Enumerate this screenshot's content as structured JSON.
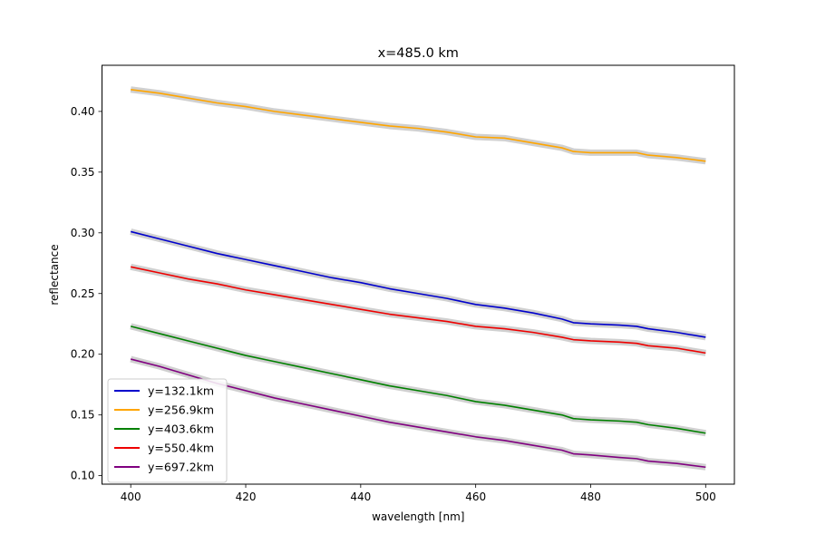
{
  "chart_data": {
    "type": "line",
    "title": "x=485.0 km",
    "xlabel": "wavelength [nm]",
    "ylabel": "reflectance",
    "xlim": [
      395,
      505
    ],
    "ylim": [
      0.093,
      0.438
    ],
    "xticks": [
      400,
      420,
      440,
      460,
      480,
      500
    ],
    "yticks": [
      0.1,
      0.15,
      0.2,
      0.25,
      0.3,
      0.35,
      0.4
    ],
    "xtick_labels": [
      "400",
      "420",
      "440",
      "460",
      "480",
      "500"
    ],
    "ytick_labels": [
      "0.10",
      "0.15",
      "0.20",
      "0.25",
      "0.30",
      "0.35",
      "0.40"
    ],
    "grid": false,
    "legend_position": "lower-left",
    "uncertainty_band_color": "#c8c8c8",
    "series": [
      {
        "name": "y=132.1km",
        "color": "#0000cc",
        "x": [
          400,
          405,
          410,
          415,
          420,
          425,
          430,
          435,
          440,
          445,
          450,
          455,
          460,
          465,
          470,
          475,
          477,
          480,
          485,
          488,
          490,
          495,
          500
        ],
        "y": [
          0.301,
          0.295,
          0.289,
          0.283,
          0.278,
          0.273,
          0.268,
          0.263,
          0.259,
          0.254,
          0.25,
          0.246,
          0.241,
          0.238,
          0.234,
          0.229,
          0.226,
          0.225,
          0.224,
          0.223,
          0.221,
          0.218,
          0.214
        ]
      },
      {
        "name": "y=256.9km",
        "color": "#ffa500",
        "x": [
          400,
          405,
          410,
          415,
          420,
          425,
          430,
          435,
          440,
          445,
          450,
          455,
          460,
          465,
          470,
          475,
          477,
          480,
          485,
          488,
          490,
          495,
          500
        ],
        "y": [
          0.418,
          0.415,
          0.411,
          0.407,
          0.404,
          0.4,
          0.397,
          0.394,
          0.391,
          0.388,
          0.386,
          0.383,
          0.379,
          0.378,
          0.374,
          0.37,
          0.367,
          0.366,
          0.366,
          0.366,
          0.364,
          0.362,
          0.359
        ]
      },
      {
        "name": "y=403.6km",
        "color": "#008000",
        "x": [
          400,
          405,
          410,
          415,
          420,
          425,
          430,
          435,
          440,
          445,
          450,
          455,
          460,
          465,
          470,
          475,
          477,
          480,
          485,
          488,
          490,
          495,
          500
        ],
        "y": [
          0.223,
          0.217,
          0.211,
          0.205,
          0.199,
          0.194,
          0.189,
          0.184,
          0.179,
          0.174,
          0.17,
          0.166,
          0.161,
          0.158,
          0.154,
          0.15,
          0.147,
          0.146,
          0.145,
          0.144,
          0.142,
          0.139,
          0.135
        ]
      },
      {
        "name": "y=550.4km",
        "color": "#ee0000",
        "x": [
          400,
          405,
          410,
          415,
          420,
          425,
          430,
          435,
          440,
          445,
          450,
          455,
          460,
          465,
          470,
          475,
          477,
          480,
          485,
          488,
          490,
          495,
          500
        ],
        "y": [
          0.272,
          0.267,
          0.262,
          0.258,
          0.253,
          0.249,
          0.245,
          0.241,
          0.237,
          0.233,
          0.23,
          0.227,
          0.223,
          0.221,
          0.218,
          0.214,
          0.212,
          0.211,
          0.21,
          0.209,
          0.207,
          0.205,
          0.201
        ]
      },
      {
        "name": "y=697.2km",
        "color": "#800080",
        "x": [
          400,
          405,
          410,
          415,
          420,
          425,
          430,
          435,
          440,
          445,
          450,
          455,
          460,
          465,
          470,
          475,
          477,
          480,
          485,
          488,
          490,
          495,
          500
        ],
        "y": [
          0.196,
          0.19,
          0.183,
          0.176,
          0.17,
          0.164,
          0.159,
          0.154,
          0.149,
          0.144,
          0.14,
          0.136,
          0.132,
          0.129,
          0.125,
          0.121,
          0.118,
          0.117,
          0.115,
          0.114,
          0.112,
          0.11,
          0.107
        ]
      }
    ]
  }
}
